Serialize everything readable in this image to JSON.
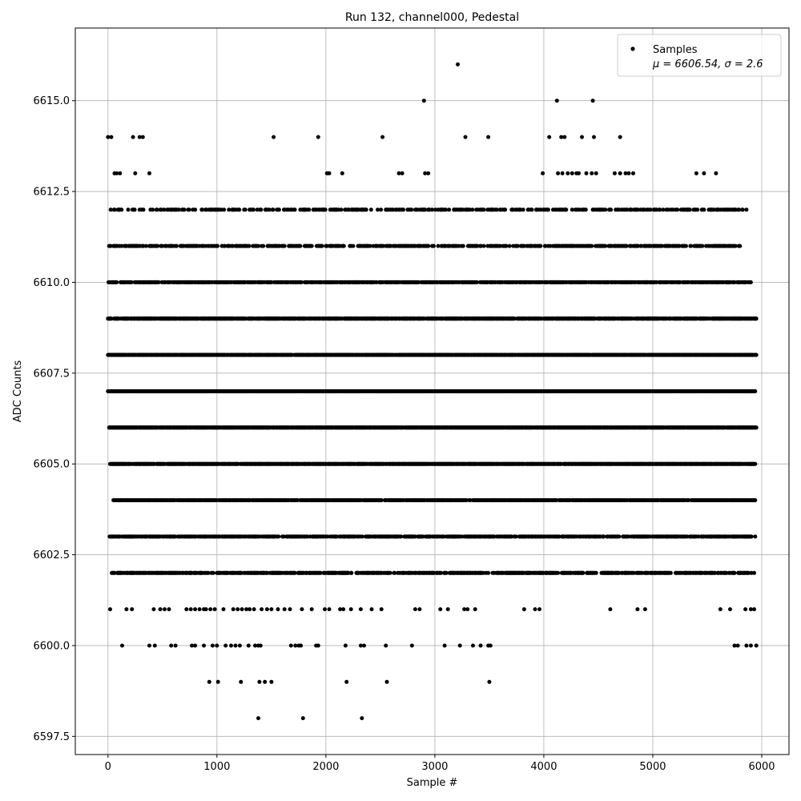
{
  "chart_data": {
    "type": "scatter",
    "title": "Run 132, channel000, Pedestal",
    "xlabel": "Sample #",
    "ylabel": "ADC Counts",
    "xlim": [
      -300,
      6250
    ],
    "ylim": [
      6597,
      6617
    ],
    "xticks": [
      0,
      1000,
      2000,
      3000,
      4000,
      5000,
      6000
    ],
    "xtick_labels": [
      "0",
      "1000",
      "2000",
      "3000",
      "4000",
      "5000",
      "6000"
    ],
    "yticks": [
      6597.5,
      6600.0,
      6602.5,
      6605.0,
      6607.5,
      6610.0,
      6612.5,
      6615.0
    ],
    "ytick_labels": [
      "6597.5",
      "6600.0",
      "6602.5",
      "6605.0",
      "6607.5",
      "6610.0",
      "6612.5",
      "6615.0"
    ],
    "grid": true,
    "legend": {
      "placement": "top-right",
      "entries": [
        {
          "name": "Samples",
          "stats": "μ = 6606.54, σ = 2.6"
        }
      ]
    },
    "marker_color": "#000000",
    "series": [
      {
        "name": "Samples",
        "mean": 6606.54,
        "sigma": 2.6,
        "sample_count": 5950,
        "levels": [
          {
            "y": 6598,
            "x": [
              1380,
              1790,
              2330
            ]
          },
          {
            "y": 6599,
            "x": [
              930,
              1010,
              1220,
              1390,
              1440,
              1500,
              2190,
              2560,
              3500
            ]
          },
          {
            "y": 6600,
            "x": [
              130,
              380,
              430,
              580,
              620,
              770,
              800,
              880,
              960,
              1000,
              1080,
              1130,
              1170,
              1210,
              1290,
              1350,
              1380,
              1400,
              1680,
              1720,
              1750,
              1770,
              1910,
              1930,
              2180,
              2320,
              2350,
              2550,
              2790,
              3090,
              3230,
              3350,
              3420,
              3490,
              3510,
              5750,
              5780,
              5860,
              5900,
              5950
            ]
          },
          {
            "y": 6601,
            "x": [
              20,
              170,
              220,
              420,
              480,
              520,
              560,
              720,
              760,
              800,
              840,
              880,
              900,
              940,
              980,
              1060,
              1150,
              1190,
              1230,
              1270,
              1300,
              1340,
              1410,
              1460,
              1500,
              1560,
              1620,
              1670,
              1780,
              1870,
              1990,
              2030,
              2130,
              2160,
              2230,
              2320,
              2420,
              2510,
              2820,
              2860,
              3050,
              3120,
              3270,
              3300,
              3370,
              3820,
              3920,
              3960,
              4610,
              4860,
              4930,
              5620,
              5710,
              5850,
              5900,
              5930
            ]
          }
        ],
        "dense_levels": [
          {
            "y": 6602,
            "x_start": 30,
            "x_end": 5930,
            "density": 0.55
          },
          {
            "y": 6603,
            "x_start": 0,
            "x_end": 5940,
            "density": 0.6
          },
          {
            "y": 6604,
            "x_start": 50,
            "x_end": 5940,
            "density": 0.7
          },
          {
            "y": 6605,
            "x_start": 20,
            "x_end": 5940,
            "density": 0.85
          },
          {
            "y": 6606,
            "x_start": 10,
            "x_end": 5950,
            "density": 0.95
          },
          {
            "y": 6607,
            "x_start": 0,
            "x_end": 5950,
            "density": 0.95
          },
          {
            "y": 6608,
            "x_start": 0,
            "x_end": 5950,
            "density": 0.9
          },
          {
            "y": 6609,
            "x_start": 0,
            "x_end": 5950,
            "density": 0.8
          },
          {
            "y": 6610,
            "x_start": 0,
            "x_end": 5900,
            "density": 0.6
          },
          {
            "y": 6611,
            "x_start": 10,
            "x_end": 5800,
            "density": 0.45
          },
          {
            "y": 6612,
            "x_start": 20,
            "x_end": 5880,
            "density": 0.3
          }
        ],
        "sparse_upper_levels": [
          {
            "y": 6613,
            "x": [
              60,
              80,
              110,
              250,
              380,
              2010,
              2030,
              2150,
              2670,
              2700,
              2910,
              2940,
              3990,
              4130,
              4170,
              4220,
              4260,
              4300,
              4320,
              4390,
              4440,
              4480,
              4650,
              4700,
              4750,
              4780,
              4820,
              5400,
              5470,
              5580
            ]
          },
          {
            "y": 6614,
            "x": [
              0,
              30,
              230,
              290,
              320,
              1520,
              1930,
              2520,
              3280,
              3490,
              4050,
              4160,
              4190,
              4350,
              4460,
              4700
            ]
          },
          {
            "y": 6615,
            "x": [
              2900,
              4120,
              4450
            ]
          },
          {
            "y": 6616,
            "x": [
              3210
            ]
          }
        ]
      }
    ]
  }
}
